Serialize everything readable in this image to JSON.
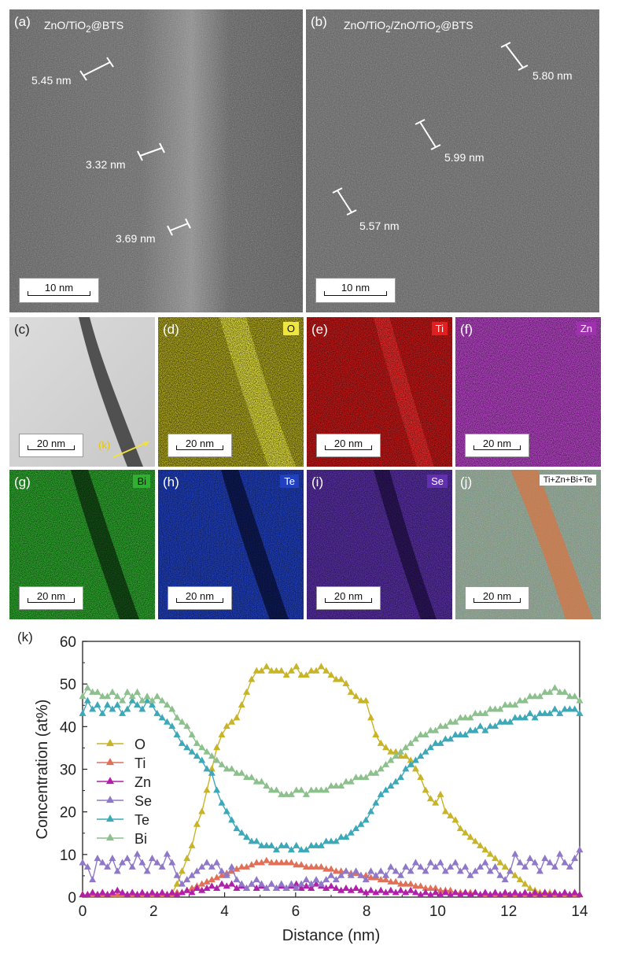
{
  "panels": {
    "a": {
      "label": "(a)",
      "title_parts": [
        "ZnO/TiO",
        "2",
        "@BTS"
      ],
      "scale": "10 nm",
      "measurements": [
        "5.45 nm",
        "3.32 nm",
        "3.69 nm"
      ]
    },
    "b": {
      "label": "(b)",
      "title_parts": [
        "ZnO/TiO",
        "2",
        "/ZnO/TiO",
        "2",
        "@BTS"
      ],
      "scale": "10 nm",
      "measurements": [
        "5.80 nm",
        "5.99 nm",
        "5.57 nm"
      ]
    },
    "c": {
      "label": "(c)",
      "scale": "20 nm",
      "line_label": "(k)"
    },
    "d": {
      "label": "(d)",
      "element": "O",
      "scale": "20 nm",
      "color": "#e8e030"
    },
    "e": {
      "label": "(e)",
      "element": "Ti",
      "scale": "20 nm",
      "color": "#e02020"
    },
    "f": {
      "label": "(f)",
      "element": "Zn",
      "scale": "20 nm",
      "color": "#b040c0"
    },
    "g": {
      "label": "(g)",
      "element": "Bi",
      "scale": "20 nm",
      "color": "#30a030"
    },
    "h": {
      "label": "(h)",
      "element": "Te",
      "scale": "20 nm",
      "color": "#2040c0"
    },
    "i": {
      "label": "(i)",
      "element": "Se",
      "scale": "20 nm",
      "color": "#6030b0"
    },
    "j": {
      "label": "(j)",
      "element": "Ti+Zn+Bi+Te",
      "scale": "20 nm"
    }
  },
  "chart_label": "(k)",
  "chart_data": {
    "type": "line",
    "title": "",
    "xlabel": "Distance (nm)",
    "ylabel": "Concentration (at%)",
    "xlim": [
      0,
      14
    ],
    "ylim": [
      0,
      60
    ],
    "xticks": [
      "0",
      "2",
      "4",
      "6",
      "8",
      "10",
      "12",
      "14"
    ],
    "yticks": [
      "0",
      "10",
      "20",
      "30",
      "40",
      "50",
      "60"
    ],
    "legend_position": "left",
    "grid": false,
    "x": [
      0,
      0.14,
      0.28,
      0.42,
      0.56,
      0.7,
      0.84,
      0.98,
      1.12,
      1.26,
      1.4,
      1.54,
      1.68,
      1.82,
      1.96,
      2.1,
      2.24,
      2.38,
      2.52,
      2.66,
      2.8,
      2.94,
      3.08,
      3.22,
      3.36,
      3.5,
      3.64,
      3.78,
      3.92,
      4.06,
      4.2,
      4.34,
      4.48,
      4.62,
      4.76,
      4.9,
      5.04,
      5.18,
      5.32,
      5.46,
      5.6,
      5.74,
      5.88,
      6.02,
      6.16,
      6.3,
      6.44,
      6.58,
      6.72,
      6.86,
      7.0,
      7.14,
      7.28,
      7.42,
      7.56,
      7.7,
      7.84,
      7.98,
      8.12,
      8.26,
      8.4,
      8.54,
      8.68,
      8.82,
      8.96,
      9.1,
      9.24,
      9.38,
      9.52,
      9.66,
      9.8,
      9.94,
      10.08,
      10.22,
      10.36,
      10.5,
      10.64,
      10.78,
      10.92,
      11.06,
      11.2,
      11.34,
      11.48,
      11.62,
      11.76,
      11.9,
      12.04,
      12.18,
      12.32,
      12.46,
      12.6,
      12.74,
      12.88,
      13.02,
      13.16,
      13.3,
      13.44,
      13.58,
      13.72,
      13.86,
      14.0
    ],
    "series": [
      {
        "name": "O",
        "color": "#c8b428",
        "values": [
          0.5,
          0.5,
          0.5,
          0.5,
          0.5,
          0.5,
          0.5,
          0.5,
          0.5,
          0.5,
          0.5,
          0.5,
          0.5,
          0.5,
          0.5,
          0.5,
          0.5,
          0.5,
          1,
          3,
          6,
          9,
          12,
          17,
          20,
          25,
          30,
          35,
          38,
          40,
          41,
          42,
          45,
          48,
          51,
          53,
          53,
          54,
          53,
          53,
          53,
          52,
          53,
          54,
          52,
          52,
          53,
          53,
          54,
          53,
          52,
          51,
          51,
          50,
          48,
          47,
          46,
          46,
          42,
          38,
          36,
          35,
          34,
          34,
          33,
          33,
          32,
          30,
          28,
          25,
          23,
          22,
          24,
          20,
          19,
          18,
          16,
          15,
          14,
          13,
          12,
          11,
          10,
          9,
          8,
          7,
          6,
          5,
          4,
          3,
          2,
          1.5,
          1,
          1,
          1,
          0.5,
          0.5,
          0.5,
          0.5,
          0.5,
          0.5
        ]
      },
      {
        "name": "Ti",
        "color": "#e07058",
        "values": [
          0.5,
          0.5,
          0.5,
          0.5,
          0.5,
          0.5,
          0.5,
          0.5,
          0.5,
          0.5,
          0.5,
          0.5,
          0.5,
          0.5,
          0.5,
          0.5,
          0.5,
          0.5,
          0.5,
          1,
          1,
          1.5,
          2,
          2.5,
          3,
          3.5,
          4,
          4.5,
          5,
          5.5,
          6,
          6.5,
          7,
          7,
          7.5,
          8,
          8,
          8.5,
          8,
          8,
          8,
          8,
          8,
          7.5,
          7.5,
          7,
          7,
          7,
          7,
          6.5,
          6.5,
          6,
          6,
          6,
          5.5,
          5.5,
          5,
          5,
          4.5,
          4.5,
          4,
          4,
          3.5,
          3.5,
          3,
          3,
          3,
          2.5,
          2.5,
          2,
          2,
          2,
          1.5,
          1.5,
          1.5,
          1,
          1,
          1,
          1,
          1,
          0.5,
          0.5,
          0.5,
          0.5,
          0.5,
          0.5,
          0.5,
          0.5,
          0.5,
          0.5,
          0.5,
          0.5,
          0.5,
          0.5,
          0.5,
          0.5,
          0.5,
          0.5,
          0.5,
          0.5,
          0.5
        ]
      },
      {
        "name": "Zn",
        "color": "#b020a8",
        "values": [
          0.5,
          0.5,
          1,
          0.5,
          1,
          0.5,
          1,
          1.5,
          1,
          0.5,
          1,
          0.5,
          1,
          0.5,
          1,
          0.5,
          1,
          0.5,
          1,
          0.5,
          1,
          1.5,
          1,
          2,
          1.5,
          2,
          2.5,
          2,
          3,
          2.5,
          3,
          2,
          2.5,
          2,
          3,
          2,
          2.5,
          2,
          3,
          2,
          2.5,
          2,
          2.5,
          3,
          2,
          2.5,
          2,
          3,
          2.5,
          2,
          2.5,
          2,
          1.5,
          2,
          1.5,
          2,
          1.5,
          1,
          1.5,
          1,
          1.5,
          1,
          1.5,
          1,
          1.5,
          1,
          1.5,
          1,
          0.5,
          1,
          0.5,
          1,
          0.5,
          1,
          0.5,
          1,
          0.5,
          1,
          0.5,
          1,
          0.5,
          1,
          0.5,
          1,
          0.5,
          1,
          0.5,
          1,
          0.5,
          1,
          0.5,
          1,
          0.5,
          1,
          0.5,
          1,
          0.5,
          1,
          0.5,
          1,
          0.5
        ]
      },
      {
        "name": "Se",
        "color": "#9078c8",
        "values": [
          8,
          7,
          4,
          9,
          8,
          7,
          9,
          6,
          8,
          9,
          7,
          10,
          8,
          6,
          9,
          8,
          7,
          10,
          8,
          5,
          3,
          4,
          5,
          6,
          7,
          8,
          7,
          8,
          6,
          5,
          7,
          4,
          3,
          2,
          3,
          4,
          3,
          2,
          3,
          2,
          3,
          2,
          3,
          2,
          3,
          4,
          3,
          4,
          3,
          4,
          5,
          4,
          5,
          6,
          5,
          6,
          5,
          4,
          6,
          5,
          6,
          5,
          7,
          6,
          5,
          7,
          6,
          8,
          7,
          6,
          8,
          7,
          8,
          6,
          7,
          8,
          6,
          7,
          5,
          6,
          7,
          8,
          6,
          7,
          5,
          4,
          6,
          10,
          8,
          7,
          9,
          8,
          6,
          9,
          8,
          7,
          10,
          8,
          7,
          9,
          11
        ]
      },
      {
        "name": "Te",
        "color": "#3ca8b8",
        "values": [
          43,
          46,
          44,
          45,
          43,
          45,
          44,
          45,
          43,
          44,
          46,
          45,
          44,
          46,
          45,
          43,
          42,
          41,
          40,
          38,
          36,
          35,
          34,
          33,
          32,
          30,
          29,
          25,
          22,
          20,
          18,
          16,
          15,
          14,
          13,
          13,
          12,
          12,
          12,
          11,
          12,
          12,
          11,
          12,
          11,
          11,
          12,
          12,
          12,
          13,
          13,
          13,
          14,
          14,
          15,
          16,
          17,
          18,
          20,
          22,
          24,
          25,
          26,
          27,
          28,
          30,
          31,
          32,
          33,
          34,
          35,
          36,
          36,
          37,
          37,
          38,
          38,
          38,
          39,
          39,
          40,
          39,
          40,
          40,
          41,
          41,
          41,
          42,
          42,
          42,
          43,
          42,
          43,
          43,
          43,
          44,
          43,
          44,
          44,
          44,
          43
        ]
      },
      {
        "name": "Bi",
        "color": "#8cc08c",
        "values": [
          47,
          49,
          48,
          48,
          47,
          47,
          48,
          47,
          46,
          48,
          47,
          48,
          46,
          47,
          46,
          47,
          46,
          45,
          44,
          42,
          41,
          40,
          38,
          36,
          35,
          34,
          33,
          32,
          31,
          30,
          30,
          29,
          29,
          28,
          28,
          27,
          27,
          26,
          25,
          25,
          24,
          24,
          24,
          25,
          25,
          24,
          25,
          25,
          25,
          25,
          26,
          26,
          26,
          27,
          27,
          28,
          28,
          28,
          29,
          29,
          30,
          31,
          32,
          33,
          34,
          35,
          36,
          37,
          38,
          38,
          39,
          39,
          40,
          40,
          41,
          41,
          42,
          42,
          42,
          43,
          43,
          43,
          44,
          44,
          44,
          45,
          45,
          45,
          46,
          46,
          47,
          47,
          47,
          48,
          48,
          49,
          48,
          48,
          47,
          47,
          46
        ]
      }
    ]
  }
}
